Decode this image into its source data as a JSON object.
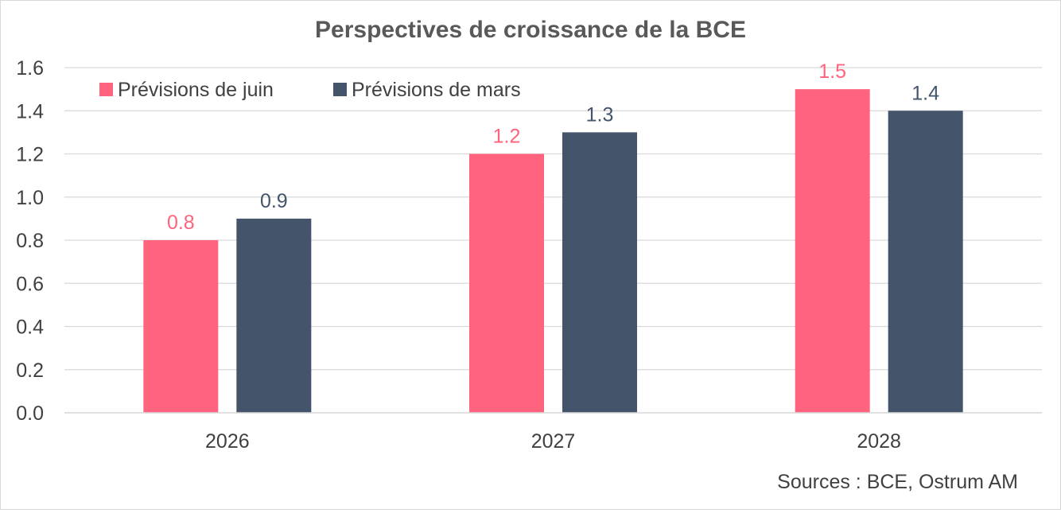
{
  "chart_data": {
    "type": "bar",
    "title": "Perspectives de croissance de la BCE",
    "categories": [
      "2026",
      "2027",
      "2028"
    ],
    "series": [
      {
        "name": "Prévisions de juin",
        "values": [
          0.8,
          1.2,
          1.5
        ],
        "color": "#ff637d"
      },
      {
        "name": "Prévisions de mars",
        "values": [
          0.9,
          1.3,
          1.4
        ],
        "color": "#44546a"
      }
    ],
    "y_ticks": [
      "0.0",
      "0.2",
      "0.4",
      "0.6",
      "0.8",
      "1.0",
      "1.2",
      "1.4",
      "1.6"
    ],
    "ylim": [
      0,
      1.6
    ],
    "grid": true,
    "legend_position": "top-left",
    "source": "Sources : BCE, Ostrum AM"
  }
}
